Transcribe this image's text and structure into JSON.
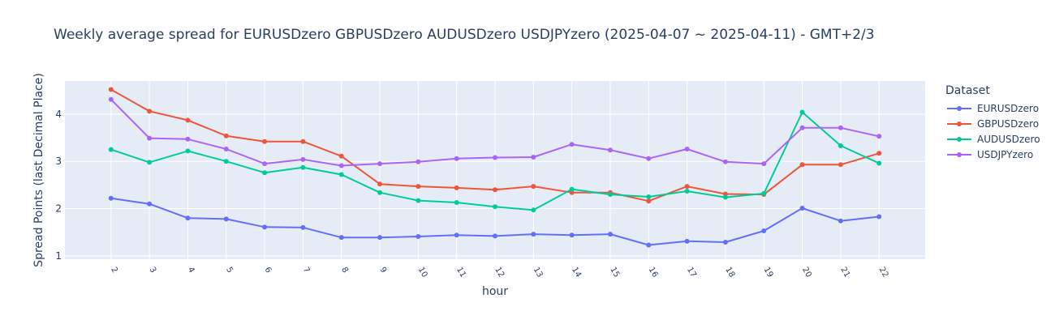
{
  "chart_data": {
    "type": "line",
    "title": "Weekly average spread for  EURUSDzero GBPUSDzero AUDUSDzero USDJPYzero (2025-04-07 ~ 2025-04-11) - GMT+2/3",
    "xlabel": "hour",
    "ylabel": "Spread Points (last Decimal Place)",
    "x": [
      2,
      3,
      4,
      5,
      6,
      7,
      8,
      9,
      10,
      11,
      12,
      13,
      14,
      15,
      16,
      17,
      18,
      19,
      20,
      21,
      22
    ],
    "ylim": [
      0.93,
      4.7
    ],
    "yticks": [
      1,
      2,
      3,
      4
    ],
    "legend_title": "Dataset",
    "legend_position": "right",
    "grid": true,
    "background": "#e5ecf6",
    "series": [
      {
        "name": "EURUSDzero",
        "color": "#636efa",
        "values": [
          2.22,
          2.1,
          1.8,
          1.78,
          1.61,
          1.6,
          1.39,
          1.39,
          1.41,
          1.44,
          1.42,
          1.46,
          1.44,
          1.46,
          1.23,
          1.31,
          1.29,
          1.53,
          2.01,
          1.74,
          1.83
        ]
      },
      {
        "name": "GBPUSDzero",
        "color": "#ef553b",
        "values": [
          4.52,
          4.06,
          3.87,
          3.54,
          3.42,
          3.42,
          3.11,
          2.52,
          2.47,
          2.44,
          2.4,
          2.47,
          2.34,
          2.34,
          2.16,
          2.47,
          2.31,
          2.3,
          2.93,
          2.93,
          3.17
        ]
      },
      {
        "name": "AUDUSDzero",
        "color": "#00cc96",
        "values": [
          3.25,
          2.98,
          3.22,
          3.0,
          2.76,
          2.87,
          2.72,
          2.34,
          2.17,
          2.13,
          2.04,
          1.97,
          2.41,
          2.3,
          2.25,
          2.37,
          2.24,
          2.32,
          4.04,
          3.33,
          2.96
        ]
      },
      {
        "name": "USDJPYzero",
        "color": "#ab63fa",
        "values": [
          4.31,
          3.49,
          3.47,
          3.26,
          2.95,
          3.04,
          2.91,
          2.95,
          2.99,
          3.06,
          3.08,
          3.09,
          3.36,
          3.24,
          3.06,
          3.26,
          2.99,
          2.95,
          3.71,
          3.71,
          3.53
        ]
      }
    ]
  }
}
